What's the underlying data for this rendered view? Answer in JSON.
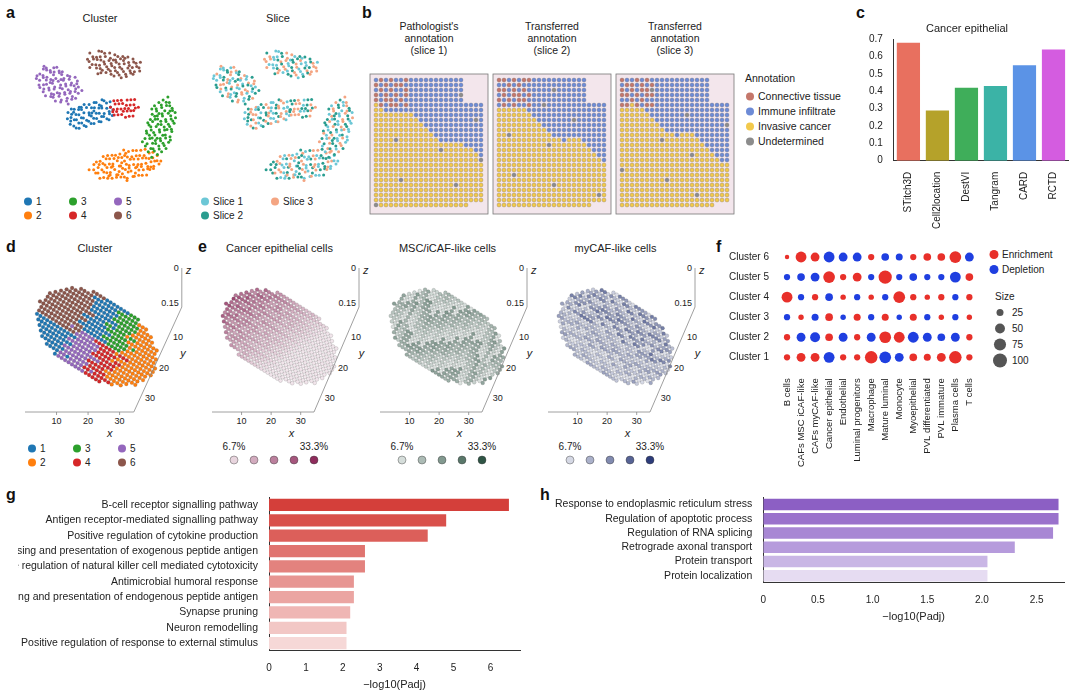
{
  "chart_data": [
    {
      "label": "c",
      "type": "bar",
      "title": "Cancer epithelial",
      "categories": [
        "STitch3D",
        "Cell2location",
        "DestVI",
        "Tangram",
        "CARD",
        "RCTD"
      ],
      "values": [
        0.68,
        0.29,
        0.42,
        0.43,
        0.55,
        0.64
      ],
      "colors": [
        "#e8705f",
        "#b5a22a",
        "#3fae5a",
        "#3bb3a6",
        "#5b93e6",
        "#d45ce0"
      ],
      "ylim": [
        0,
        0.7
      ],
      "yticks": [
        0,
        0.1,
        0.2,
        0.3,
        0.4,
        0.5,
        0.6,
        0.7
      ],
      "grid": false
    },
    {
      "label": "f",
      "type": "bubble",
      "categories": [
        "B cells",
        "CAFs MSC iCAF-like",
        "CAFs myCAF-like",
        "Cancer epithelial",
        "Endothelial",
        "Luminal progenitors",
        "Macrophage",
        "Mature luminal",
        "Monocyte",
        "Myoepithelial",
        "PVL differentiated",
        "PVL immature",
        "Plasma cells",
        "T cells"
      ],
      "rows": [
        "Cluster 1",
        "Cluster 2",
        "Cluster 3",
        "Cluster 4",
        "Cluster 5",
        "Cluster 6"
      ],
      "sizes": [
        [
          20,
          40,
          40,
          60,
          20,
          20,
          80,
          70,
          40,
          30,
          25,
          40,
          80,
          20
        ],
        [
          20,
          40,
          50,
          30,
          40,
          20,
          40,
          70,
          60,
          60,
          40,
          30,
          40,
          20
        ],
        [
          20,
          15,
          25,
          30,
          15,
          25,
          20,
          25,
          15,
          25,
          20,
          15,
          20,
          15
        ],
        [
          60,
          20,
          20,
          30,
          15,
          20,
          15,
          20,
          70,
          20,
          15,
          20,
          20,
          20
        ],
        [
          20,
          30,
          40,
          70,
          20,
          40,
          20,
          90,
          20,
          30,
          20,
          20,
          60,
          30
        ],
        [
          10,
          60,
          40,
          60,
          40,
          40,
          20,
          30,
          25,
          20,
          30,
          30,
          70,
          40
        ]
      ],
      "enriched": [
        [
          true,
          true,
          true,
          false,
          true,
          true,
          true,
          false,
          false,
          true,
          true,
          true,
          true,
          true
        ],
        [
          true,
          false,
          false,
          true,
          false,
          true,
          false,
          true,
          true,
          false,
          false,
          false,
          false,
          true
        ],
        [
          false,
          true,
          false,
          true,
          false,
          true,
          false,
          true,
          false,
          true,
          false,
          true,
          false,
          true
        ],
        [
          true,
          false,
          true,
          false,
          true,
          false,
          true,
          false,
          true,
          true,
          true,
          true,
          false,
          true
        ],
        [
          false,
          false,
          false,
          true,
          true,
          true,
          false,
          true,
          false,
          false,
          false,
          false,
          false,
          true
        ],
        [
          true,
          true,
          true,
          false,
          false,
          false,
          true,
          false,
          false,
          true,
          true,
          true,
          true,
          false
        ]
      ],
      "direction_legend": [
        {
          "name": "Enrichment",
          "color": "#e8302a"
        },
        {
          "name": "Depletion",
          "color": "#1f3fe0"
        }
      ],
      "size_legend": {
        "title": "Size",
        "values": [
          25,
          50,
          75,
          100
        ]
      }
    },
    {
      "label": "g",
      "type": "bar",
      "orientation": "horizontal",
      "categories": [
        "B-cell receptor signalling pathway",
        "Antigen receptor-mediated signalling pathway",
        "Positive regulation of cytokine production",
        "Antigen processing and presentation of exogenous peptide antigen",
        "Negative regulation of natural killer cell mediated cytotoxicity",
        "Antimicrobial humoral response",
        "Antigen processing and presentation of endogenous peptide antigen",
        "Synapse pruning",
        "Neuron remodelling",
        "Positive regulation of response to external stimulus"
      ],
      "values": [
        6.5,
        4.8,
        4.3,
        2.6,
        2.6,
        2.3,
        2.3,
        2.2,
        2.1,
        2.1
      ],
      "colors": [
        "#d43f3a",
        "#d9504b",
        "#dc5f5a",
        "#e07470",
        "#e3827e",
        "#e79592",
        "#eba5a2",
        "#efb6b4",
        "#f2c7c5",
        "#f6d8d7"
      ],
      "xlabel": "−log10(Padj)",
      "xlim": [
        0,
        6.8
      ],
      "xticks": [
        0,
        1,
        2,
        3,
        4,
        5,
        6
      ],
      "grid": false
    },
    {
      "label": "h",
      "type": "bar",
      "orientation": "horizontal",
      "categories": [
        "Response to endoplasmic reticulum stress",
        "Regulation of apoptotic process",
        "Regulation of RNA splicing",
        "Retrograde axonal transport",
        "Protein transport",
        "Protein localization"
      ],
      "values": [
        2.7,
        2.7,
        2.65,
        2.3,
        2.05,
        2.05
      ],
      "colors": [
        "#8c5fc4",
        "#9a72cc",
        "#a887d4",
        "#b69bdc",
        "#c9b6e5",
        "#e6dcf2"
      ],
      "xlabel": "−log10(Padj)",
      "xlim": [
        0,
        2.75
      ],
      "xticks": [
        0,
        0.5,
        {
          "value": 1,
          "label": "1.0"
        },
        1.5,
        {
          "value": 2,
          "label": "2.0"
        },
        2.5
      ],
      "grid": false
    }
  ],
  "panels": {
    "a": {
      "label": "a",
      "plots": [
        {
          "title": "Cluster",
          "legend": [
            {
              "name": "1",
              "color": "#1f77b4"
            },
            {
              "name": "2",
              "color": "#ff7f0e"
            },
            {
              "name": "3",
              "color": "#2ca02c"
            },
            {
              "name": "4",
              "color": "#d62728"
            },
            {
              "name": "5",
              "color": "#9467bd"
            },
            {
              "name": "6",
              "color": "#8c564b"
            }
          ]
        },
        {
          "title": "Slice",
          "legend": [
            {
              "name": "Slice 1",
              "color": "#6cc7d6"
            },
            {
              "name": "Slice 2",
              "color": "#2a9d8f"
            },
            {
              "name": "Slice 3",
              "color": "#f4a582"
            }
          ]
        }
      ]
    },
    "b": {
      "label": "b",
      "images": [
        {
          "title": [
            "Pathologist's",
            "annotation",
            "(slice 1)"
          ]
        },
        {
          "title": [
            "Transferred",
            "annotation",
            "(slice 2)"
          ]
        },
        {
          "title": [
            "Transferred",
            "annotation",
            "(slice 3)"
          ]
        }
      ],
      "legend_title": "Annotation",
      "legend": [
        {
          "name": "Connective tissue",
          "color": "#c4776b"
        },
        {
          "name": "Immune infiltrate",
          "color": "#6d8bd6"
        },
        {
          "name": "Invasive cancer",
          "color": "#f2c94c"
        },
        {
          "name": "Undetermined",
          "color": "#8c8c8c"
        }
      ]
    },
    "d": {
      "label": "d",
      "title": "Cluster",
      "axes": {
        "x": {
          "label": "x",
          "ticks": [
            10,
            20,
            30
          ]
        },
        "y": {
          "label": "y",
          "ticks": [
            10,
            20,
            30
          ]
        },
        "z": {
          "label": "z",
          "ticks": [
            0,
            0.15
          ]
        }
      },
      "legend": [
        {
          "name": "1",
          "color": "#1f77b4"
        },
        {
          "name": "2",
          "color": "#ff7f0e"
        },
        {
          "name": "3",
          "color": "#2ca02c"
        },
        {
          "name": "4",
          "color": "#d62728"
        },
        {
          "name": "5",
          "color": "#9467bd"
        },
        {
          "name": "6",
          "color": "#8c564b"
        }
      ]
    },
    "e": {
      "label": "e",
      "plots": [
        {
          "title": "Cancer epithelial cells",
          "color": "#8e2c5c"
        },
        {
          "title": "MSC/iCAF-like cells",
          "color": "#2f5545"
        },
        {
          "title": "myCAF-like cells",
          "color": "#2d3c7a"
        }
      ],
      "axes": {
        "x": {
          "label": "x",
          "ticks": [
            10,
            20,
            30
          ]
        },
        "y": {
          "label": "y",
          "ticks": [
            10,
            20,
            30
          ]
        },
        "z": {
          "label": "z",
          "ticks": [
            0,
            0.15
          ]
        }
      },
      "colorbar_ticks": [
        {
          "value": 6.7,
          "label": "6.7%"
        },
        {
          "value": 33.3,
          "label": "33.3%"
        }
      ]
    }
  }
}
